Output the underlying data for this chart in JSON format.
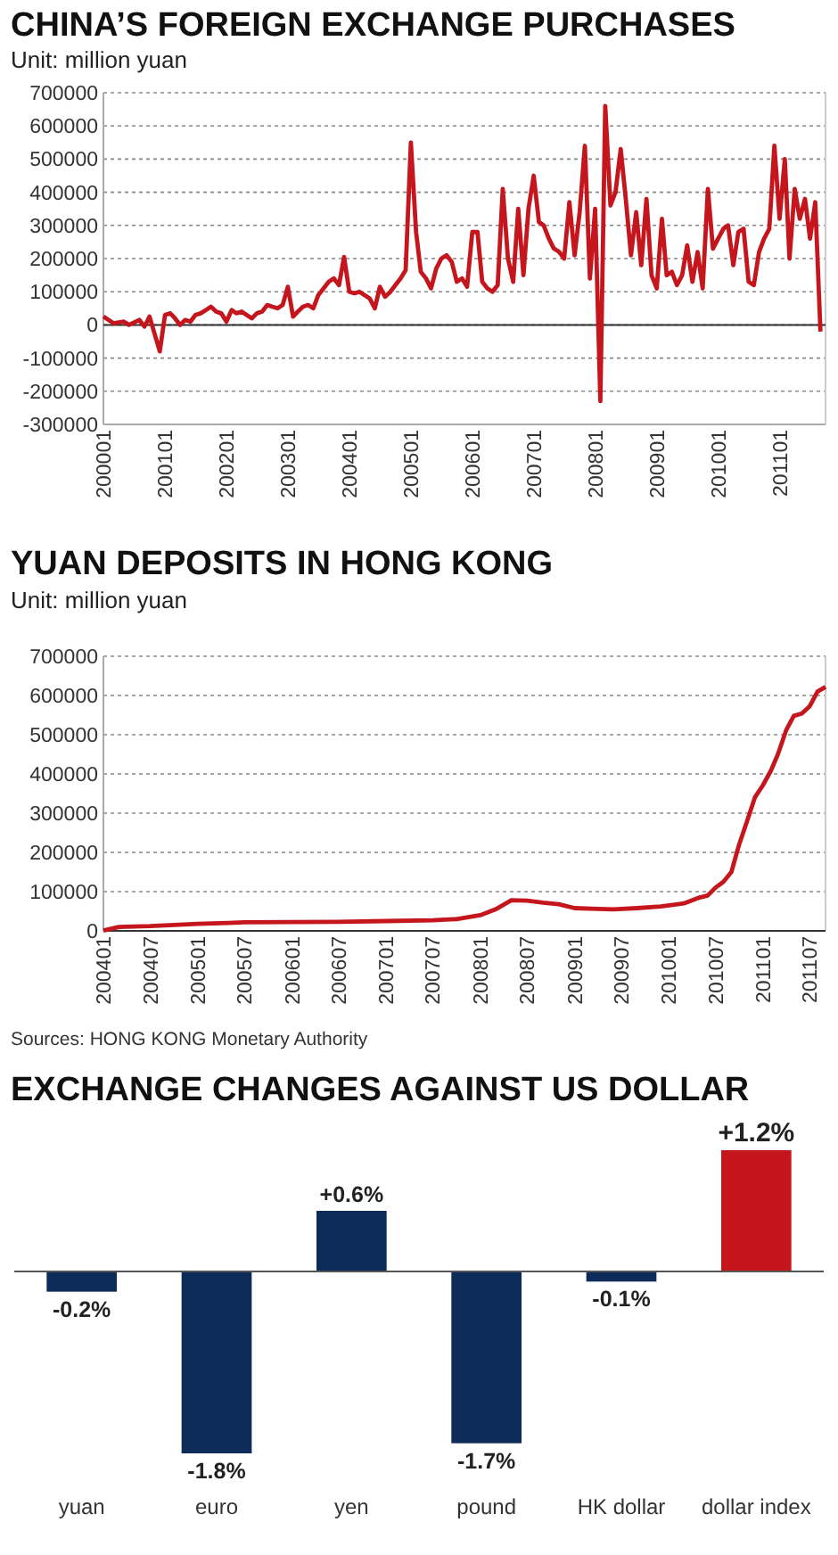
{
  "chart_data": [
    {
      "type": "line",
      "title": "CHINA’S FOREIGN EXCHANGE PURCHASES",
      "subtitle": "Unit: million yuan",
      "grid": "y",
      "marker": "none",
      "line_style": "solid",
      "xlim": [
        "2000-01",
        "2011-10"
      ],
      "ylim": [
        -300000,
        700000
      ],
      "yticks": [
        -300000,
        -200000,
        -100000,
        0,
        100000,
        200000,
        300000,
        400000,
        500000,
        600000,
        700000
      ],
      "xticks": [
        {
          "value": "2000-01",
          "label": "200001"
        },
        {
          "value": "2001-01",
          "label": "200101"
        },
        {
          "value": "2002-01",
          "label": "200201"
        },
        {
          "value": "2003-01",
          "label": "200301"
        },
        {
          "value": "2004-01",
          "label": "200401"
        },
        {
          "value": "2005-01",
          "label": "200501"
        },
        {
          "value": "2006-01",
          "label": "200601"
        },
        {
          "value": "2007-01",
          "label": "200701"
        },
        {
          "value": "2008-01",
          "label": "200801"
        },
        {
          "value": "2009-01",
          "label": "200901"
        },
        {
          "value": "2010-01",
          "label": "201001"
        },
        {
          "value": "2011-01",
          "label": "201101"
        }
      ],
      "x": [
        "2000-01",
        "2000-03",
        "2000-05",
        "2000-06",
        "2000-08",
        "2000-09",
        "2000-10",
        "2000-12",
        "2001-01",
        "2001-02",
        "2001-03",
        "2001-04",
        "2001-05",
        "2001-06",
        "2001-07",
        "2001-08",
        "2001-09",
        "2001-10",
        "2001-11",
        "2001-12",
        "2002-01",
        "2002-02",
        "2002-03",
        "2002-04",
        "2002-05",
        "2002-06",
        "2002-07",
        "2002-08",
        "2002-09",
        "2002-10",
        "2002-11",
        "2002-12",
        "2003-01",
        "2003-02",
        "2003-03",
        "2003-04",
        "2003-05",
        "2003-06",
        "2003-07",
        "2003-08",
        "2003-09",
        "2003-10",
        "2003-11",
        "2003-12",
        "2004-01",
        "2004-02",
        "2004-03",
        "2004-04",
        "2004-05",
        "2004-06",
        "2004-07",
        "2004-08",
        "2004-09",
        "2004-10",
        "2004-11",
        "2004-12",
        "2005-01",
        "2005-02",
        "2005-03",
        "2005-04",
        "2005-05",
        "2005-06",
        "2005-07",
        "2005-08",
        "2005-09",
        "2005-10",
        "2005-11",
        "2005-12",
        "2006-01",
        "2006-02",
        "2006-03",
        "2006-04",
        "2006-05",
        "2006-06",
        "2006-07",
        "2006-08",
        "2006-09",
        "2006-10",
        "2006-11",
        "2006-12",
        "2007-01",
        "2007-02",
        "2007-03",
        "2007-04",
        "2007-05",
        "2007-06",
        "2007-07",
        "2007-08",
        "2007-09",
        "2007-10",
        "2007-11",
        "2007-12",
        "2008-01",
        "2008-02",
        "2008-03",
        "2008-04",
        "2008-05",
        "2008-06",
        "2008-07",
        "2008-08",
        "2008-09",
        "2008-10",
        "2008-11",
        "2008-12",
        "2009-01",
        "2009-02",
        "2009-03",
        "2009-04",
        "2009-05",
        "2009-06",
        "2009-07",
        "2009-08",
        "2009-09",
        "2009-10",
        "2009-11",
        "2009-12",
        "2010-01",
        "2010-02",
        "2010-03",
        "2010-04",
        "2010-05",
        "2010-06",
        "2010-07",
        "2010-08",
        "2010-09",
        "2010-10",
        "2010-11",
        "2010-12",
        "2011-01",
        "2011-02",
        "2011-03",
        "2011-04",
        "2011-05",
        "2011-06",
        "2011-07",
        "2011-08",
        "2011-09"
      ],
      "series": [
        {
          "color": "#c4161c",
          "values": [
            25000,
            5000,
            10000,
            0,
            15000,
            -5000,
            25000,
            -80000,
            30000,
            35000,
            20000,
            0,
            15000,
            10000,
            30000,
            35000,
            45000,
            55000,
            40000,
            35000,
            10000,
            45000,
            35000,
            40000,
            30000,
            20000,
            35000,
            40000,
            60000,
            55000,
            50000,
            60000,
            115000,
            25000,
            40000,
            55000,
            60000,
            50000,
            90000,
            110000,
            130000,
            140000,
            120000,
            205000,
            100000,
            95000,
            100000,
            90000,
            80000,
            50000,
            115000,
            85000,
            100000,
            120000,
            140000,
            165000,
            550000,
            280000,
            160000,
            140000,
            110000,
            170000,
            200000,
            210000,
            190000,
            130000,
            140000,
            115000,
            280000,
            280000,
            130000,
            110000,
            100000,
            120000,
            410000,
            200000,
            130000,
            350000,
            150000,
            350000,
            450000,
            310000,
            300000,
            260000,
            230000,
            220000,
            200000,
            370000,
            210000,
            340000,
            540000,
            140000,
            350000,
            -230000,
            660000,
            360000,
            400000,
            530000,
            380000,
            210000,
            340000,
            180000,
            380000,
            150000,
            110000,
            320000,
            150000,
            160000,
            120000,
            150000,
            240000,
            130000,
            220000,
            110000,
            410000,
            230000,
            260000,
            290000,
            300000,
            180000,
            280000,
            290000,
            130000,
            120000,
            220000,
            260000,
            290000,
            540000,
            320000,
            500000,
            200000,
            410000,
            320000,
            380000,
            260000,
            370000,
            -20000
          ]
        }
      ]
    },
    {
      "type": "line",
      "title": "YUAN DEPOSITS IN HONG KONG",
      "subtitle": "Unit: million yuan",
      "grid": "y",
      "marker": "none",
      "line_style": "solid",
      "annotations": [
        "Sources: HONG KONG Monetary Authority"
      ],
      "xlim": [
        "2004-01",
        "2011-09"
      ],
      "ylim": [
        0,
        700000
      ],
      "yticks": [
        0,
        100000,
        200000,
        300000,
        400000,
        500000,
        600000,
        700000
      ],
      "xticks": [
        {
          "value": "2004-01",
          "label": "200401"
        },
        {
          "value": "2004-07",
          "label": "200407"
        },
        {
          "value": "2005-01",
          "label": "200501"
        },
        {
          "value": "2005-07",
          "label": "200507"
        },
        {
          "value": "2006-01",
          "label": "200601"
        },
        {
          "value": "2006-07",
          "label": "200607"
        },
        {
          "value": "2007-01",
          "label": "200701"
        },
        {
          "value": "2007-07",
          "label": "200707"
        },
        {
          "value": "2008-01",
          "label": "200801"
        },
        {
          "value": "2008-07",
          "label": "200807"
        },
        {
          "value": "2009-01",
          "label": "200901"
        },
        {
          "value": "2009-07",
          "label": "200907"
        },
        {
          "value": "2010-01",
          "label": "201001"
        },
        {
          "value": "2010-07",
          "label": "201007"
        },
        {
          "value": "2011-01",
          "label": "201101"
        },
        {
          "value": "2011-07",
          "label": "201107"
        }
      ],
      "x": [
        "2004-01",
        "2004-03",
        "2004-07",
        "2005-01",
        "2005-05",
        "2005-07",
        "2006-07",
        "2007-01",
        "2007-07",
        "2007-10",
        "2008-01",
        "2008-03",
        "2008-05",
        "2008-07",
        "2008-09",
        "2008-11",
        "2009-01",
        "2009-04",
        "2009-06",
        "2009-09",
        "2009-12",
        "2010-03",
        "2010-05",
        "2010-06",
        "2010-07",
        "2010-08",
        "2010-09",
        "2010-10",
        "2010-11",
        "2010-12",
        "2011-01",
        "2011-02",
        "2011-03",
        "2011-04",
        "2011-05",
        "2011-06",
        "2011-07",
        "2011-08",
        "2011-09"
      ],
      "series": [
        {
          "color": "#c4161c",
          "values": [
            1000,
            10000,
            12000,
            18000,
            20000,
            22000,
            23000,
            25000,
            27000,
            30000,
            40000,
            55000,
            78000,
            77000,
            72000,
            68000,
            58000,
            56000,
            55000,
            58000,
            62000,
            70000,
            85000,
            90000,
            110000,
            125000,
            150000,
            220000,
            280000,
            340000,
            371000,
            408000,
            451000,
            511000,
            548000,
            554000,
            572000,
            610000,
            622000
          ]
        }
      ]
    },
    {
      "type": "bar",
      "title": "EXCHANGE CHANGES AGAINST US DOLLAR",
      "categories": [
        "yuan",
        "euro",
        "yen",
        "pound",
        "HK dollar",
        "dollar index"
      ],
      "values": [
        -0.2,
        -1.8,
        0.6,
        -1.7,
        -0.1,
        1.2
      ],
      "colors": [
        "#0d2c5a",
        "#0d2c5a",
        "#0d2c5a",
        "#0d2c5a",
        "#0d2c5a",
        "#c4161c"
      ],
      "value_labels": [
        "-0.2%",
        "-1.8%",
        "+0.6%",
        "-1.7%",
        "-0.1%",
        "+1.2%"
      ]
    }
  ]
}
